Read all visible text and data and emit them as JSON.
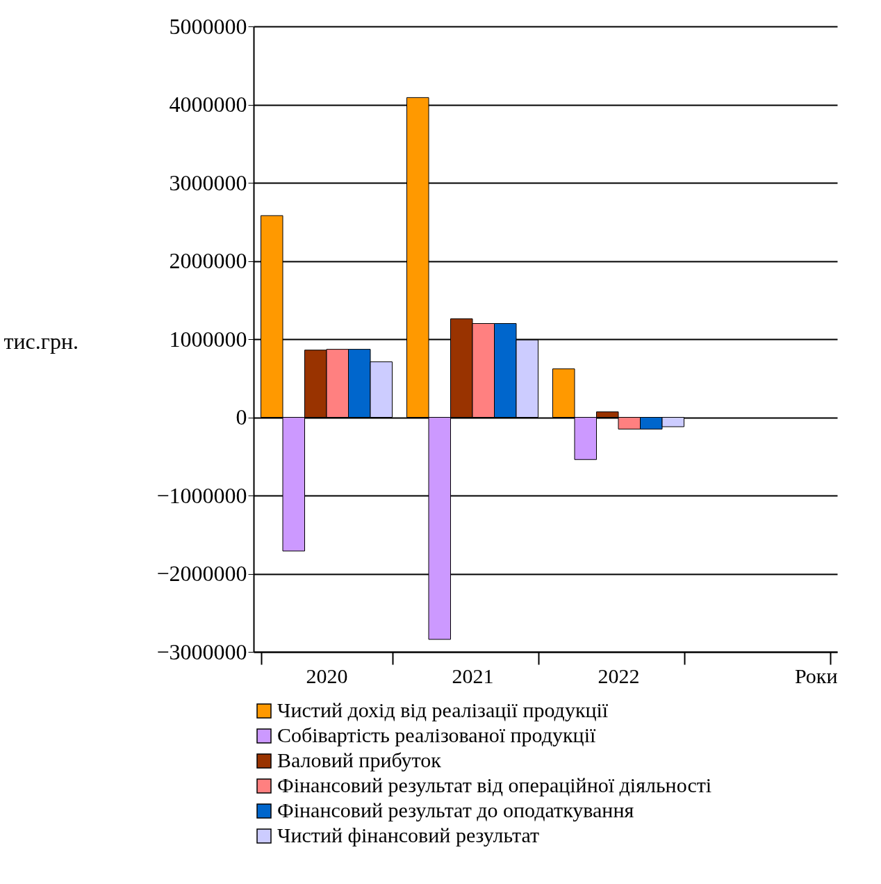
{
  "chart_data": {
    "type": "bar",
    "categories": [
      "2020",
      "2021",
      "2022",
      null
    ],
    "xlabel": "Роки",
    "ylabel": "тис.грн.",
    "ylim": [
      -3000000,
      5000000
    ],
    "yticks": [
      -3000000,
      -2000000,
      -1000000,
      0,
      1000000,
      2000000,
      3000000,
      4000000,
      5000000
    ],
    "grid": "y",
    "legend": "bottom",
    "series": [
      {
        "name": "Чистий дохід від реалізації продукції",
        "color": "#ff9900",
        "values": [
          2580000,
          4090000,
          620000,
          null
        ]
      },
      {
        "name": "Собівартість реалізованої продукції",
        "color": "#cc99ff",
        "values": [
          -1710000,
          -2840000,
          -540000,
          null
        ]
      },
      {
        "name": "Валовий прибуток",
        "color": "#993300",
        "values": [
          860000,
          1260000,
          70000,
          null
        ]
      },
      {
        "name": "Фінансовий результат від операційної діяльності",
        "color": "#ff8080",
        "values": [
          870000,
          1200000,
          -150000,
          null
        ]
      },
      {
        "name": "Фінансовий результат до оподаткування",
        "color": "#0066cc",
        "values": [
          870000,
          1200000,
          -150000,
          null
        ]
      },
      {
        "name": "Чистий фінансовий результат",
        "color": "#ccccff",
        "values": [
          710000,
          990000,
          -120000,
          null
        ]
      }
    ]
  }
}
